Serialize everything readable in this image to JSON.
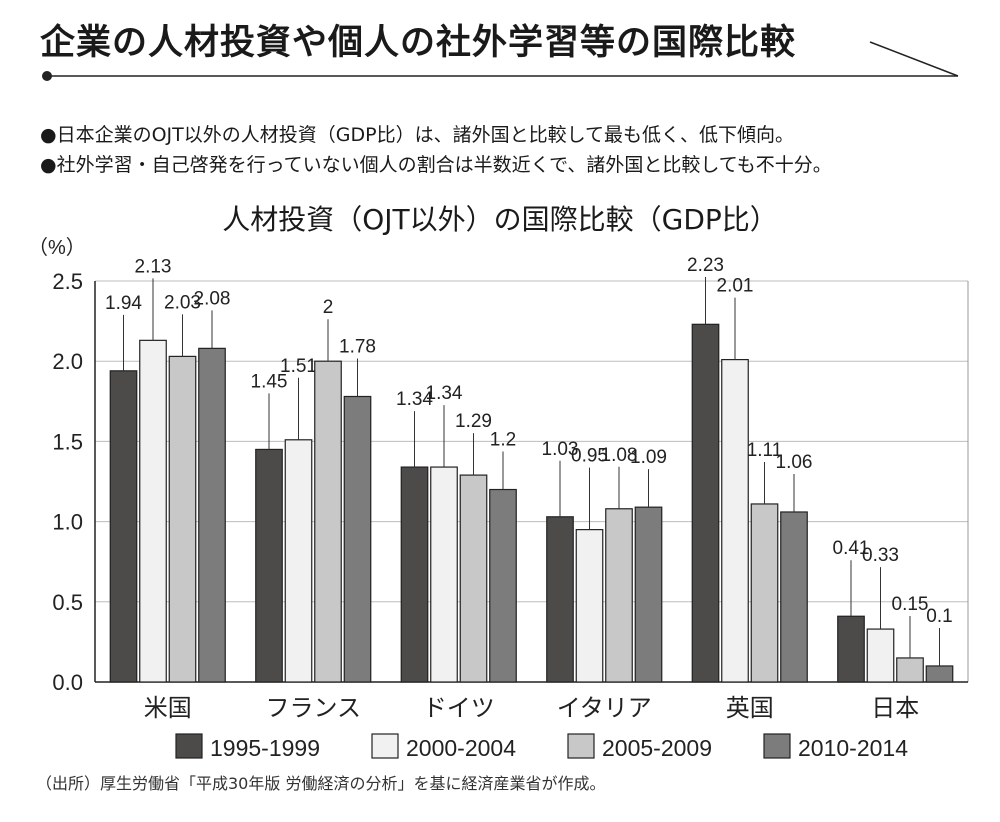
{
  "header": {
    "title": "企業の人材投資や個人の社外学習等の国際比較"
  },
  "bullets": [
    "日本企業のOJT以外の人材投資（GDP比）は、諸外国と比較して最も低く、低下傾向。",
    "社外学習・自己啓発を行っていない個人の割合は半数近くで、諸外国と比較しても不十分。"
  ],
  "source_note": "（出所）厚生労働省「平成30年版 労働経済の分析」を基に経済産業省が作成。",
  "chart_data": {
    "type": "bar",
    "title": "人材投資（OJT以外）の国際比較（GDP比）",
    "ylabel": "（%）",
    "xlabel": "",
    "ylim": [
      0,
      2.5
    ],
    "yticks": [
      "0.0",
      "0.5",
      "1.0",
      "1.5",
      "2.0",
      "2.5"
    ],
    "grid": true,
    "legend_position": "bottom",
    "categories": [
      "米国",
      "フランス",
      "ドイツ",
      "イタリア",
      "英国",
      "日本"
    ],
    "series": [
      {
        "name": "1995-1999",
        "color": "#4d4a4a",
        "values": [
          1.94,
          1.45,
          1.34,
          1.03,
          2.23,
          0.41
        ],
        "labels": [
          "1.94",
          "1.45",
          "1.34",
          "1.03",
          "2.23",
          "0.41"
        ]
      },
      {
        "name": "2000-2004",
        "color": "#f1f1f1",
        "values": [
          2.13,
          1.51,
          1.34,
          0.95,
          2.01,
          0.33
        ],
        "labels": [
          "2.13",
          "1.51",
          "1.34",
          "0.95",
          "2.01",
          "0.33"
        ]
      },
      {
        "name": "2005-2009",
        "color": "#c8c8c8",
        "values": [
          2.03,
          2.0,
          1.29,
          1.08,
          1.11,
          0.15
        ],
        "labels": [
          "2.03",
          "2",
          "1.29",
          "1.08",
          "1.11",
          "0.15"
        ]
      },
      {
        "name": "2010-2014",
        "color": "#7c7c7c",
        "values": [
          2.08,
          1.78,
          1.2,
          1.09,
          1.06,
          0.1
        ],
        "labels": [
          "2.08",
          "1.78",
          "1.2",
          "1.09",
          "1.06",
          "0.1"
        ]
      }
    ]
  }
}
